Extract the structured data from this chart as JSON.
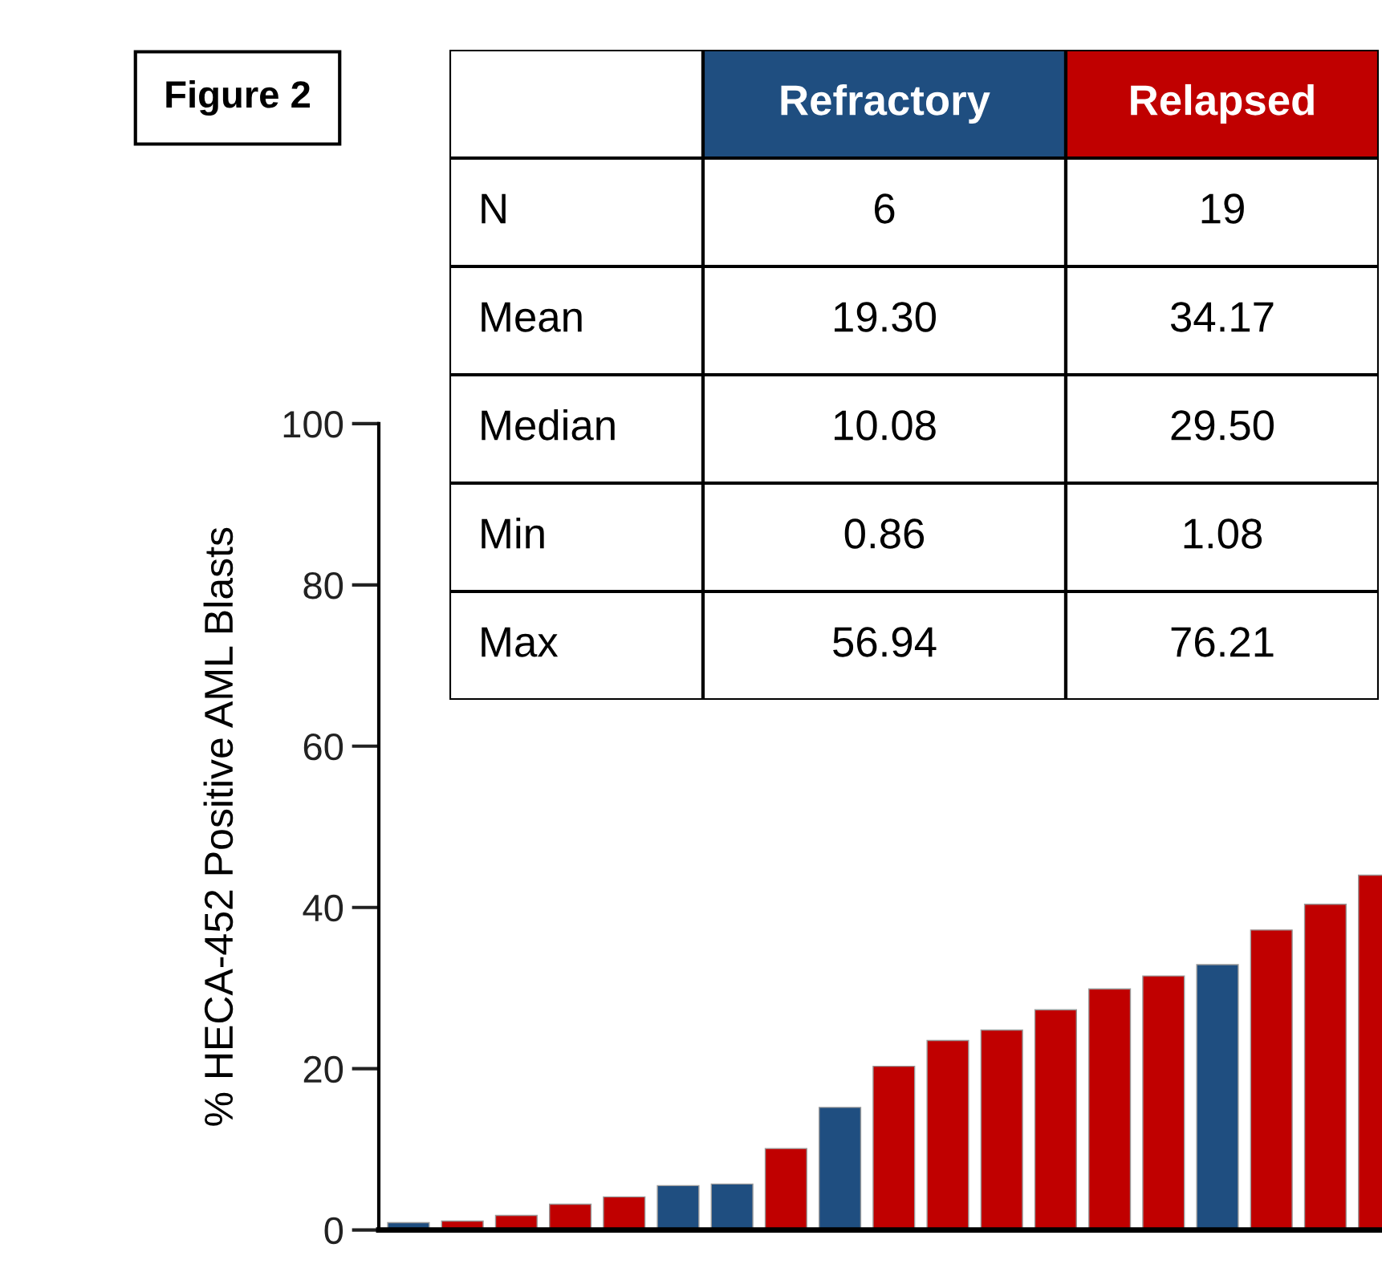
{
  "chart_data": [
    {
      "type": "bar",
      "title": "Figure 2",
      "ylabel": "% HECA-452 Positive AML Blasts",
      "categories": [
        null,
        null,
        null,
        null,
        null,
        null,
        null,
        null,
        null,
        null,
        null,
        null,
        null,
        null,
        null,
        null,
        null,
        null,
        null
      ],
      "values": [
        0.9,
        1.1,
        1.8,
        3.2,
        4.1,
        5.5,
        5.7,
        10.1,
        15.2,
        20.3,
        23.5,
        24.8,
        27.3,
        29.9,
        31.5,
        32.9,
        37.2,
        40.4,
        44.0
      ],
      "colors": [
        "#1f4e80",
        "#c00000",
        "#c00000",
        "#c00000",
        "#c00000",
        "#1f4e80",
        "#1f4e80",
        "#c00000",
        "#1f4e80",
        "#c00000",
        "#c00000",
        "#c00000",
        "#c00000",
        "#c00000",
        "#c00000",
        "#1f4e80",
        "#c00000",
        "#c00000",
        "#c00000"
      ],
      "ylim": [
        0,
        100
      ],
      "yticks": [
        0,
        20,
        40,
        60,
        80,
        100
      ],
      "grid": false,
      "tick_labels": "y"
    },
    {
      "type": "other",
      "categories": [
        null,
        "Refractory",
        "Relapsed"
      ],
      "colors": [
        null,
        "#1f4e80",
        "#c00000"
      ],
      "y_categories": [
        "N",
        "Mean",
        "Median",
        "Min",
        "Max"
      ],
      "cells": [
        [
          "6",
          "19"
        ],
        [
          "19.30",
          "34.17"
        ],
        [
          "10.08",
          "29.50"
        ],
        [
          "0.86",
          "1.08"
        ],
        [
          "56.94",
          "76.21"
        ]
      ]
    }
  ]
}
